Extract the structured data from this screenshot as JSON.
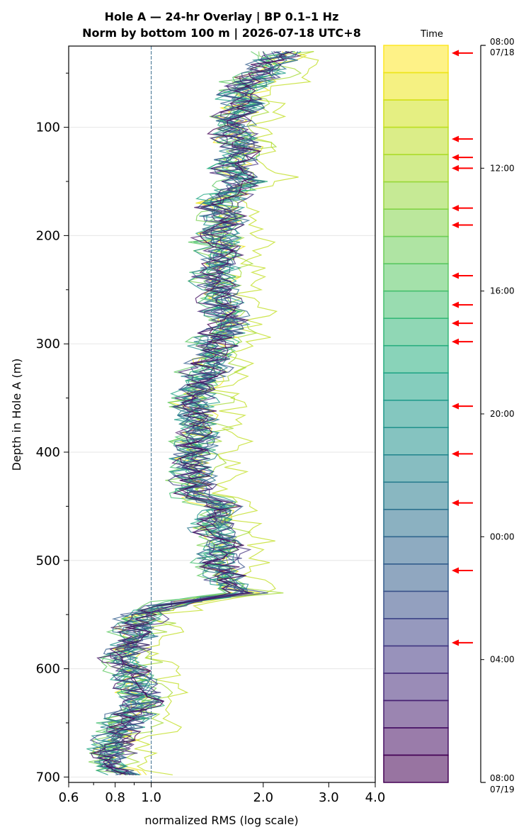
{
  "chart_data": {
    "type": "line",
    "title_line1": "Hole A — 24-hr Overlay  |  BP 0.1–1 Hz",
    "title_line2": "Norm by bottom 100 m  |  2026-07-18 UTC+8",
    "xlabel": "normalized RMS  (log scale)",
    "ylabel": "Depth in Hole A (m)",
    "x_scale": "log",
    "xlim": [
      0.6,
      4.0
    ],
    "ylim": [
      705,
      25
    ],
    "x_ticks": [
      {
        "value": 0.6,
        "label": "0.6"
      },
      {
        "value": 0.8,
        "label": "0.8"
      },
      {
        "value": 1.0,
        "label": "1.0"
      },
      {
        "value": 2.0,
        "label": "2.0"
      },
      {
        "value": 3.0,
        "label": "3.0"
      },
      {
        "value": 4.0,
        "label": "4.0"
      }
    ],
    "y_ticks": [
      {
        "value": 100,
        "label": "100"
      },
      {
        "value": 200,
        "label": "200"
      },
      {
        "value": 300,
        "label": "300"
      },
      {
        "value": 400,
        "label": "400"
      },
      {
        "value": 500,
        "label": "500"
      },
      {
        "value": 600,
        "label": "600"
      },
      {
        "value": 700,
        "label": "700"
      }
    ],
    "reference_line_x": 1.0,
    "grid": true,
    "profile": {
      "depth": [
        30,
        50,
        70,
        80,
        90,
        100,
        120,
        140,
        150,
        170,
        190,
        200,
        220,
        240,
        260,
        280,
        300,
        320,
        340,
        360,
        380,
        400,
        420,
        440,
        450,
        470,
        490,
        500,
        520,
        530,
        540,
        550,
        570,
        590,
        610,
        630,
        650,
        670,
        690,
        700
      ],
      "rms": [
        2.25,
        2.0,
        1.7,
        1.85,
        1.6,
        1.65,
        1.75,
        1.65,
        1.8,
        1.5,
        1.6,
        1.5,
        1.55,
        1.5,
        1.55,
        1.6,
        1.5,
        1.45,
        1.35,
        1.3,
        1.35,
        1.3,
        1.3,
        1.3,
        1.55,
        1.45,
        1.6,
        1.5,
        1.6,
        1.8,
        1.1,
        0.95,
        0.9,
        0.85,
        0.9,
        0.95,
        0.85,
        0.8,
        0.75,
        0.9
      ]
    },
    "series": [
      {
        "time": "07/18 08:30",
        "color": "#fde725",
        "offset": 1.0
      },
      {
        "time": "07/18 09:30",
        "color": "#e8e419",
        "offset": 1.03
      },
      {
        "time": "07/18 10:30",
        "color": "#c2df23",
        "offset": 1.25
      },
      {
        "time": "07/18 11:30",
        "color": "#a5db36",
        "offset": 1.1
      },
      {
        "time": "07/18 12:30",
        "color": "#7ad151",
        "offset": 0.98
      },
      {
        "time": "07/18 13:30",
        "color": "#5ec962",
        "offset": 0.96
      },
      {
        "time": "07/18 14:30",
        "color": "#43bf71",
        "offset": 0.99
      },
      {
        "time": "07/18 15:30",
        "color": "#2fb47c",
        "offset": 1.01
      },
      {
        "time": "07/18 16:30",
        "color": "#22a884",
        "offset": 1.0
      },
      {
        "time": "07/18 17:30",
        "color": "#1f9e89",
        "offset": 1.02
      },
      {
        "time": "07/18 18:30",
        "color": "#21918c",
        "offset": 0.99
      },
      {
        "time": "07/18 19:30",
        "color": "#25848e",
        "offset": 1.01
      },
      {
        "time": "07/18 20:30",
        "color": "#2a788e",
        "offset": 1.0
      },
      {
        "time": "07/18 21:30",
        "color": "#2f6b8e",
        "offset": 1.02
      },
      {
        "time": "07/18 22:30",
        "color": "#355f8d",
        "offset": 0.99
      },
      {
        "time": "07/18 23:30",
        "color": "#3b528b",
        "offset": 1.01
      },
      {
        "time": "07/19 00:30",
        "color": "#414487",
        "offset": 1.0
      },
      {
        "time": "07/19 01:30",
        "color": "#46337f",
        "offset": 1.03
      },
      {
        "time": "07/19 02:30",
        "color": "#482576",
        "offset": 0.98
      },
      {
        "time": "07/19 03:30",
        "color": "#481567",
        "offset": 1.0
      },
      {
        "time": "07/19 04:30",
        "color": "#440154",
        "offset": 1.0
      }
    ],
    "colorbar": {
      "label": "Time",
      "top_label_time": "08:00",
      "top_label_date": "07/18",
      "bottom_label_time": "08:00",
      "bottom_label_date": "07/19",
      "tick_labels": [
        "12:00",
        "16:00",
        "20:00",
        "00:00",
        "04:00"
      ],
      "tick_hours": [
        4,
        8,
        12,
        16,
        20
      ],
      "band_colors": [
        "#fde725",
        "#ece51b",
        "#d0e11c",
        "#bddf26",
        "#addc30",
        "#98d83e",
        "#84d44b",
        "#6ece58",
        "#5ac864",
        "#46c06f",
        "#35b779",
        "#28ae80",
        "#20a486",
        "#1f998a",
        "#21918c",
        "#24868e",
        "#287c8e",
        "#2c718e",
        "#31668e",
        "#355e8d",
        "#3b528b",
        "#404688",
        "#443983",
        "#472d7b",
        "#482071",
        "#471164",
        "#440154"
      ],
      "arrow_hours": [
        0.25,
        3.05,
        3.65,
        4.0,
        5.3,
        5.85,
        7.5,
        8.45,
        9.05,
        9.65,
        11.75,
        13.3,
        14.9,
        17.1,
        19.45
      ]
    }
  },
  "styling": {
    "arrow_color": "#ff0000",
    "ref_line_color": "#3b6e8f",
    "grid_color": "#e6e6e6"
  }
}
